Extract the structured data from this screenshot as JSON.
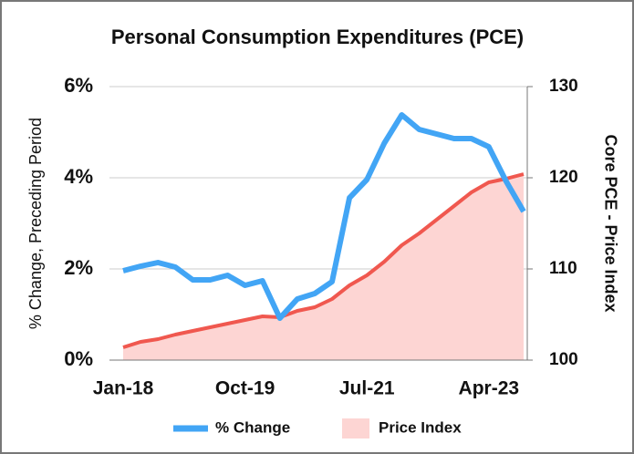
{
  "chart_data": {
    "type": "line",
    "title": "Personal Consumption Expenditures (PCE)",
    "y_label": "% Change, Preceding Period",
    "y2_label": "Core PCE - Price Index",
    "categories": [
      "Jan-18",
      null,
      null,
      null,
      null,
      null,
      null,
      "Oct-19",
      null,
      null,
      null,
      null,
      null,
      null,
      "Jul-21",
      null,
      null,
      null,
      null,
      null,
      null,
      "Apr-23",
      null,
      null
    ],
    "series": [
      {
        "name": "% Change",
        "type": "line",
        "color": "#42a5f5",
        "values": [
          1.96,
          2.06,
          2.14,
          2.04,
          1.76,
          1.76,
          1.86,
          1.64,
          1.74,
          0.92,
          1.34,
          1.46,
          1.72,
          3.56,
          3.96,
          4.76,
          5.38,
          5.06,
          4.96,
          4.86,
          4.86,
          4.68,
          3.92,
          3.26
        ]
      },
      {
        "name": "Price Index",
        "type": "area",
        "axis": "y2",
        "color": "#f0584f",
        "fill": "#fdd5d3",
        "values": [
          101.4,
          102.0,
          102.3,
          102.8,
          103.2,
          103.6,
          104.0,
          104.4,
          104.8,
          104.7,
          105.4,
          105.8,
          106.7,
          108.2,
          109.3,
          110.8,
          112.6,
          113.9,
          115.4,
          116.9,
          118.4,
          119.5,
          119.9,
          120.4
        ]
      }
    ],
    "ylim": [
      0,
      6
    ],
    "yticks": [
      {
        "value": 0,
        "label": "0%"
      },
      {
        "value": 2,
        "label": "2%"
      },
      {
        "value": 4,
        "label": "4%"
      },
      {
        "value": 6,
        "label": "6%"
      }
    ],
    "y2lim": [
      100,
      130
    ],
    "y2ticks": [
      100,
      110,
      120,
      130
    ],
    "grid": true,
    "legend": "bottom"
  }
}
